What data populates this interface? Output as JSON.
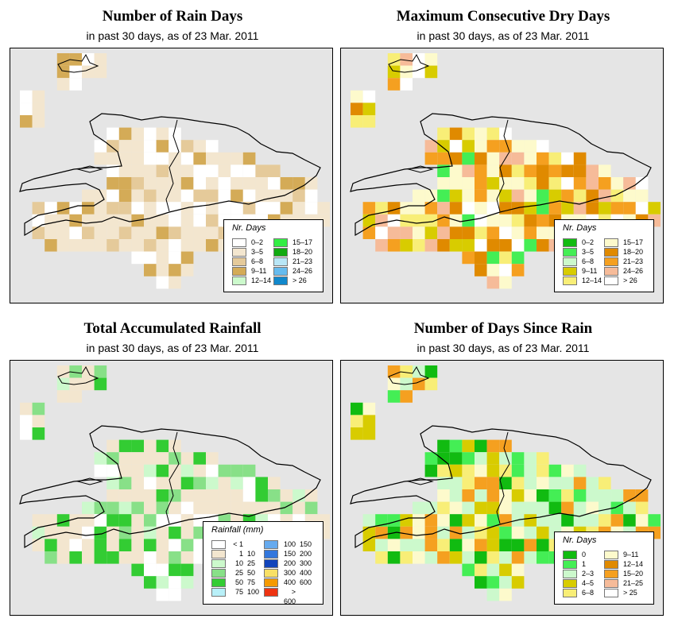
{
  "panels": [
    {
      "title": "Number of Rain Days",
      "subtitle": "in past 30 days, as of  23 Mar. 2011",
      "legend_title": "Nr. Days",
      "legend_items": [
        {
          "label": "0–2",
          "color": "#ffffff"
        },
        {
          "label": "3–5",
          "color": "#f3e6cf"
        },
        {
          "label": "6–8",
          "color": "#e5ca9a"
        },
        {
          "label": "9–11",
          "color": "#d4ab57"
        },
        {
          "label": "12–14",
          "color": "#ccf9cc"
        },
        {
          "label": "15–17",
          "color": "#33ee44"
        },
        {
          "label": "18–20",
          "color": "#11aa11"
        },
        {
          "label": "21–23",
          "color": "#b8e6f6"
        },
        {
          "label": "24–26",
          "color": "#66bbee"
        },
        {
          "label": "> 26",
          "color": "#1188cc"
        }
      ]
    },
    {
      "title": "Maximum Consecutive Dry Days",
      "subtitle": "in past 30 days, as of  23 Mar. 2011",
      "legend_title": "Nr. Days",
      "legend_items": [
        {
          "label": "0–2",
          "color": "#11bb11"
        },
        {
          "label": "3–5",
          "color": "#44ee55"
        },
        {
          "label": "6–8",
          "color": "#ccf9cc"
        },
        {
          "label": "9–11",
          "color": "#d8cc00"
        },
        {
          "label": "12–14",
          "color": "#f8ee77"
        },
        {
          "label": "15–17",
          "color": "#fdfacc"
        },
        {
          "label": "18–20",
          "color": "#e08a00"
        },
        {
          "label": "21–23",
          "color": "#f5a020"
        },
        {
          "label": "24–26",
          "color": "#f6bb99"
        },
        {
          "label": "> 26",
          "color": "#ffffff"
        }
      ]
    },
    {
      "title": "Total Accumulated Rainfall",
      "subtitle": "in past 30 days, as of  23 Mar. 2011",
      "legend_title": "Rainfall (mm)",
      "legend_items": [
        {
          "lo": "< 1",
          "hi": "",
          "color": "#ffffff"
        },
        {
          "lo": "1",
          "hi": "10",
          "color": "#f3e6cf"
        },
        {
          "lo": "10",
          "hi": "25",
          "color": "#ccf9cc"
        },
        {
          "lo": "25",
          "hi": "50",
          "color": "#88e088"
        },
        {
          "lo": "50",
          "hi": "75",
          "color": "#33cc33"
        },
        {
          "lo": "75",
          "hi": "100",
          "color": "#b8f0f8"
        },
        {
          "lo": "100",
          "hi": "150",
          "color": "#66aaee"
        },
        {
          "lo": "150",
          "hi": "200",
          "color": "#3377dd"
        },
        {
          "lo": "200",
          "hi": "300",
          "color": "#1144bb"
        },
        {
          "lo": "300",
          "hi": "400",
          "color": "#f8e066"
        },
        {
          "lo": "400",
          "hi": "600",
          "color": "#f59a00"
        },
        {
          "lo": "> 600",
          "hi": "",
          "color": "#ee3311"
        }
      ]
    },
    {
      "title": "Number of Days Since Rain",
      "subtitle": "in past 30 days, as of  23 Mar. 2011",
      "legend_title": "Nr. Days",
      "legend_items": [
        {
          "label": "0",
          "color": "#11bb11"
        },
        {
          "label": "1",
          "color": "#44ee55"
        },
        {
          "label": "2–3",
          "color": "#ccf9cc"
        },
        {
          "label": "4–5",
          "color": "#d8cc00"
        },
        {
          "label": "6–8",
          "color": "#f8ee77"
        },
        {
          "label": "9–11",
          "color": "#fdfacc"
        },
        {
          "label": "12–14",
          "color": "#e08a00"
        },
        {
          "label": "15–20",
          "color": "#f5a020"
        },
        {
          "label": "21–25",
          "color": "#f6bb99"
        },
        {
          "label": "> 25",
          "color": "#ffffff"
        }
      ]
    }
  ]
}
